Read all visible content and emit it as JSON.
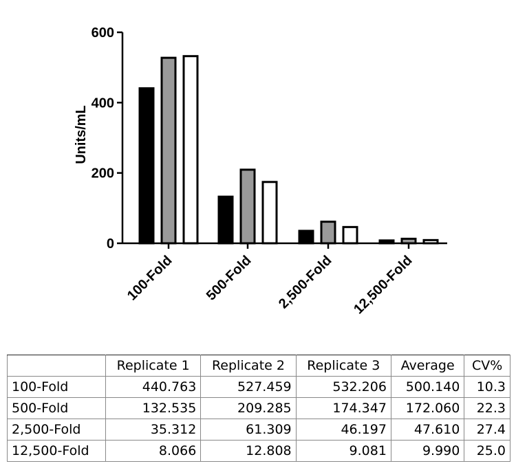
{
  "chart_data": {
    "type": "bar",
    "ylabel": "Units/mL",
    "ylim": [
      0,
      600
    ],
    "yticks": [
      0,
      200,
      400,
      600
    ],
    "categories": [
      "100-Fold",
      "500-Fold",
      "2,500-Fold",
      "12,500-Fold"
    ],
    "series": [
      {
        "values": [
          440.763,
          132.535,
          35.312,
          8.066
        ],
        "fill": "#000000"
      },
      {
        "values": [
          527.459,
          209.285,
          61.309,
          12.808
        ],
        "fill": "#9a9a9a"
      },
      {
        "values": [
          532.206,
          174.347,
          46.197,
          9.081
        ],
        "fill": "#ffffff"
      }
    ],
    "legend": "none",
    "grid": false
  },
  "table": {
    "headers": [
      "",
      "Replicate 1",
      "Replicate 2",
      "Replicate 3",
      "Average",
      "CV%"
    ],
    "rows": [
      [
        "100-Fold",
        "440.763",
        "527.459",
        "532.206",
        "500.140",
        "10.3"
      ],
      [
        "500-Fold",
        "132.535",
        "209.285",
        "174.347",
        "172.060",
        "22.3"
      ],
      [
        "2,500-Fold",
        "35.312",
        "61.309",
        "46.197",
        "47.610",
        "27.4"
      ],
      [
        "12,500-Fold",
        "8.066",
        "12.808",
        "9.081",
        "9.990",
        "25.0"
      ]
    ]
  }
}
